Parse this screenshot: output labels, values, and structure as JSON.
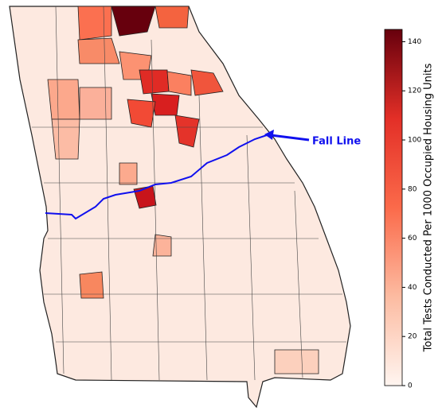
{
  "map": {
    "annotation": "Fall Line",
    "colorbar": {
      "label": "Total Tests Conducted Per 1000 Occupied Housing Units",
      "lim": [
        0,
        145
      ],
      "ticks": [
        0,
        20,
        40,
        60,
        80,
        100,
        120,
        140
      ]
    }
  }
}
